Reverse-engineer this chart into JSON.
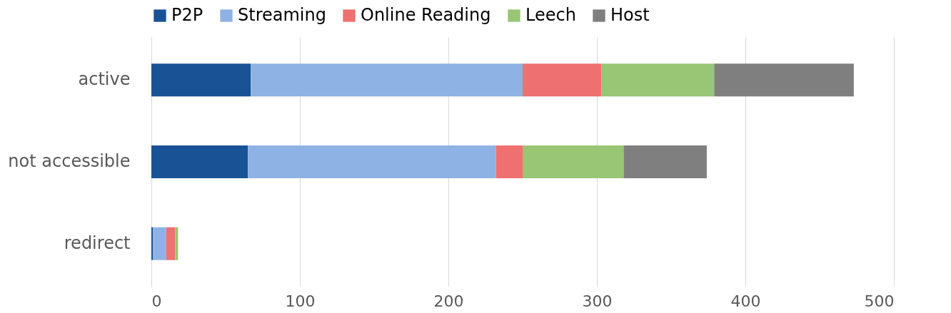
{
  "chart_data": {
    "type": "bar",
    "orientation": "horizontal",
    "stacked": true,
    "categories": [
      "active",
      "not accessible",
      "redirect"
    ],
    "series": [
      {
        "name": "P2P",
        "color": "#1a5296",
        "values": [
          67,
          65,
          1
        ]
      },
      {
        "name": "Streaming",
        "color": "#8fb2e4",
        "values": [
          183,
          167,
          9
        ]
      },
      {
        "name": "Online Reading",
        "color": "#ef7070",
        "values": [
          53,
          18,
          6
        ]
      },
      {
        "name": "Leech",
        "color": "#98c674",
        "values": [
          76,
          68,
          2
        ]
      },
      {
        "name": "Host",
        "color": "#7f7f7f",
        "values": [
          94,
          56,
          0
        ]
      }
    ],
    "xlim": [
      0,
      500
    ],
    "xticks": [
      0,
      100,
      200,
      300,
      400,
      500
    ],
    "grid": "x",
    "legend": "top"
  }
}
